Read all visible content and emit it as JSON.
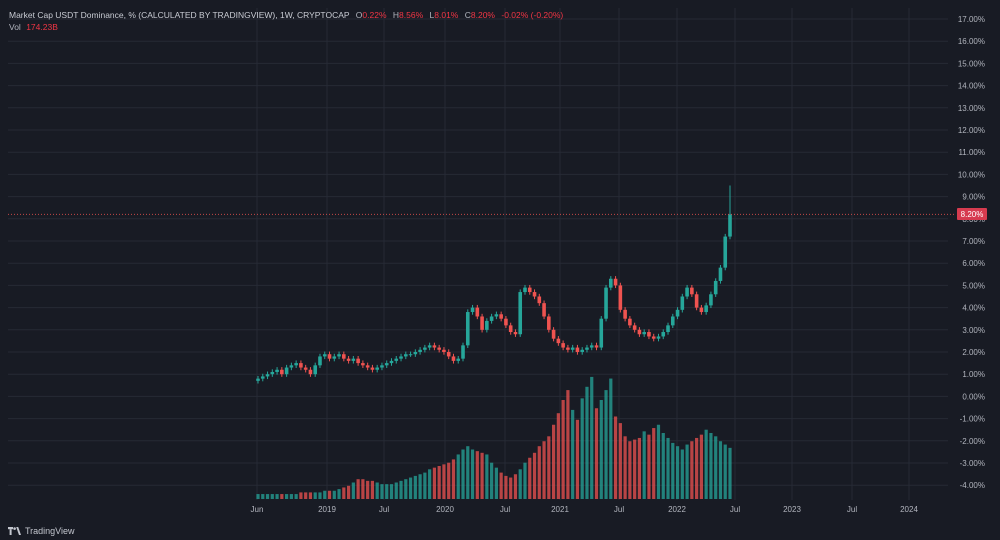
{
  "legend": {
    "title": "Market Cap USDT Dominance, % (CALCULATED BY TRADINGVIEW), 1W, CRYPTOCAP",
    "o_label": "O",
    "o_value": "0.22%",
    "h_label": "H",
    "h_value": "8.56%",
    "l_label": "L",
    "l_value": "8.01%",
    "c_label": "C",
    "c_value": "8.20%",
    "change": "-0.02% (-0.20%)",
    "vol_label": "Vol",
    "vol_value": "174.23B"
  },
  "last_price_label": "8.20%",
  "brand": "TradingView",
  "icons": {
    "brand": "tradingview-logo-icon"
  },
  "colors": {
    "background": "#181b24",
    "up": "#26a69a",
    "down": "#ef5350",
    "grid": "#262a35",
    "text": "#b2b5be",
    "price_tag": "#d63b4f"
  },
  "chart_data": {
    "type": "candlestick",
    "title": "Market Cap USDT Dominance, % (CALCULATED BY TRADINGVIEW), 1W, CRYPTOCAP",
    "xlabel": "",
    "ylabel": "",
    "x_ticks": [
      "Jun",
      "2019",
      "Jul",
      "2020",
      "Jul",
      "2021",
      "Jul",
      "2022",
      "Jul",
      "2023",
      "Jul",
      "2024"
    ],
    "y_ticks": [
      "17.00%",
      "16.00%",
      "15.00%",
      "14.00%",
      "13.00%",
      "12.00%",
      "11.00%",
      "10.00%",
      "9.00%",
      "8.00%",
      "7.00%",
      "6.00%",
      "5.00%",
      "4.00%",
      "3.00%",
      "2.00%",
      "1.00%",
      "0.00%",
      "-1.00%",
      "-2.00%",
      "-3.00%",
      "-4.00%"
    ],
    "ylim": [
      -4.6,
      17.15
    ],
    "last_value": 8.2,
    "high_peak": 9.5,
    "grid": true,
    "series": [
      {
        "values": [
          0.8,
          0.9,
          1.0,
          1.1,
          1.2,
          1.0,
          1.3,
          1.4,
          1.5,
          1.3,
          1.2,
          1.0,
          1.4,
          1.8,
          1.9,
          1.7,
          1.8,
          1.9,
          1.7,
          1.6,
          1.7,
          1.5,
          1.4,
          1.3,
          1.2,
          1.3,
          1.4,
          1.5,
          1.6,
          1.7,
          1.8,
          1.9,
          1.9,
          2.0,
          2.1,
          2.2,
          2.3,
          2.2,
          2.1,
          2.0,
          1.8,
          1.6,
          1.7,
          2.3,
          3.8,
          4.0,
          3.6,
          3.0,
          3.4,
          3.6,
          3.7,
          3.5,
          3.2,
          2.9,
          2.8,
          4.7,
          4.9,
          4.7,
          4.5,
          4.2,
          3.6,
          3.0,
          2.6,
          2.4,
          2.2,
          2.1,
          2.2,
          2.0,
          2.1,
          2.2,
          2.3,
          2.2,
          3.5,
          4.9,
          5.3,
          5.0,
          3.9,
          3.5,
          3.2,
          3.0,
          2.8,
          2.9,
          2.7,
          2.6,
          2.7,
          2.9,
          3.2,
          3.6,
          3.9,
          4.5,
          4.9,
          4.6,
          4.0,
          3.8,
          4.1,
          4.6,
          5.2,
          5.8,
          7.2,
          8.2
        ]
      }
    ],
    "volume": [
      0.3,
      0.3,
      0.3,
      0.3,
      0.3,
      0.3,
      0.3,
      0.3,
      0.3,
      0.4,
      0.4,
      0.4,
      0.4,
      0.4,
      0.5,
      0.5,
      0.5,
      0.6,
      0.7,
      0.8,
      1.0,
      1.2,
      1.2,
      1.1,
      1.1,
      1.0,
      0.9,
      0.9,
      0.9,
      1.0,
      1.1,
      1.2,
      1.3,
      1.4,
      1.5,
      1.6,
      1.8,
      1.9,
      2.0,
      2.1,
      2.2,
      2.4,
      2.7,
      3.0,
      3.2,
      3.0,
      2.9,
      2.8,
      2.7,
      2.2,
      1.9,
      1.6,
      1.4,
      1.3,
      1.5,
      1.8,
      2.2,
      2.5,
      2.8,
      3.2,
      3.5,
      3.8,
      4.5,
      5.2,
      6.0,
      6.6,
      5.4,
      4.8,
      6.1,
      6.8,
      7.4,
      5.5,
      6.0,
      6.6,
      7.3,
      5.0,
      4.6,
      3.8,
      3.5,
      3.6,
      3.7,
      4.1,
      3.9,
      4.3,
      4.5,
      4.0,
      3.7,
      3.4,
      3.2,
      3.0,
      3.3,
      3.5,
      3.7,
      3.9,
      4.2,
      4.0,
      3.8,
      3.5,
      3.3,
      3.1
    ]
  }
}
